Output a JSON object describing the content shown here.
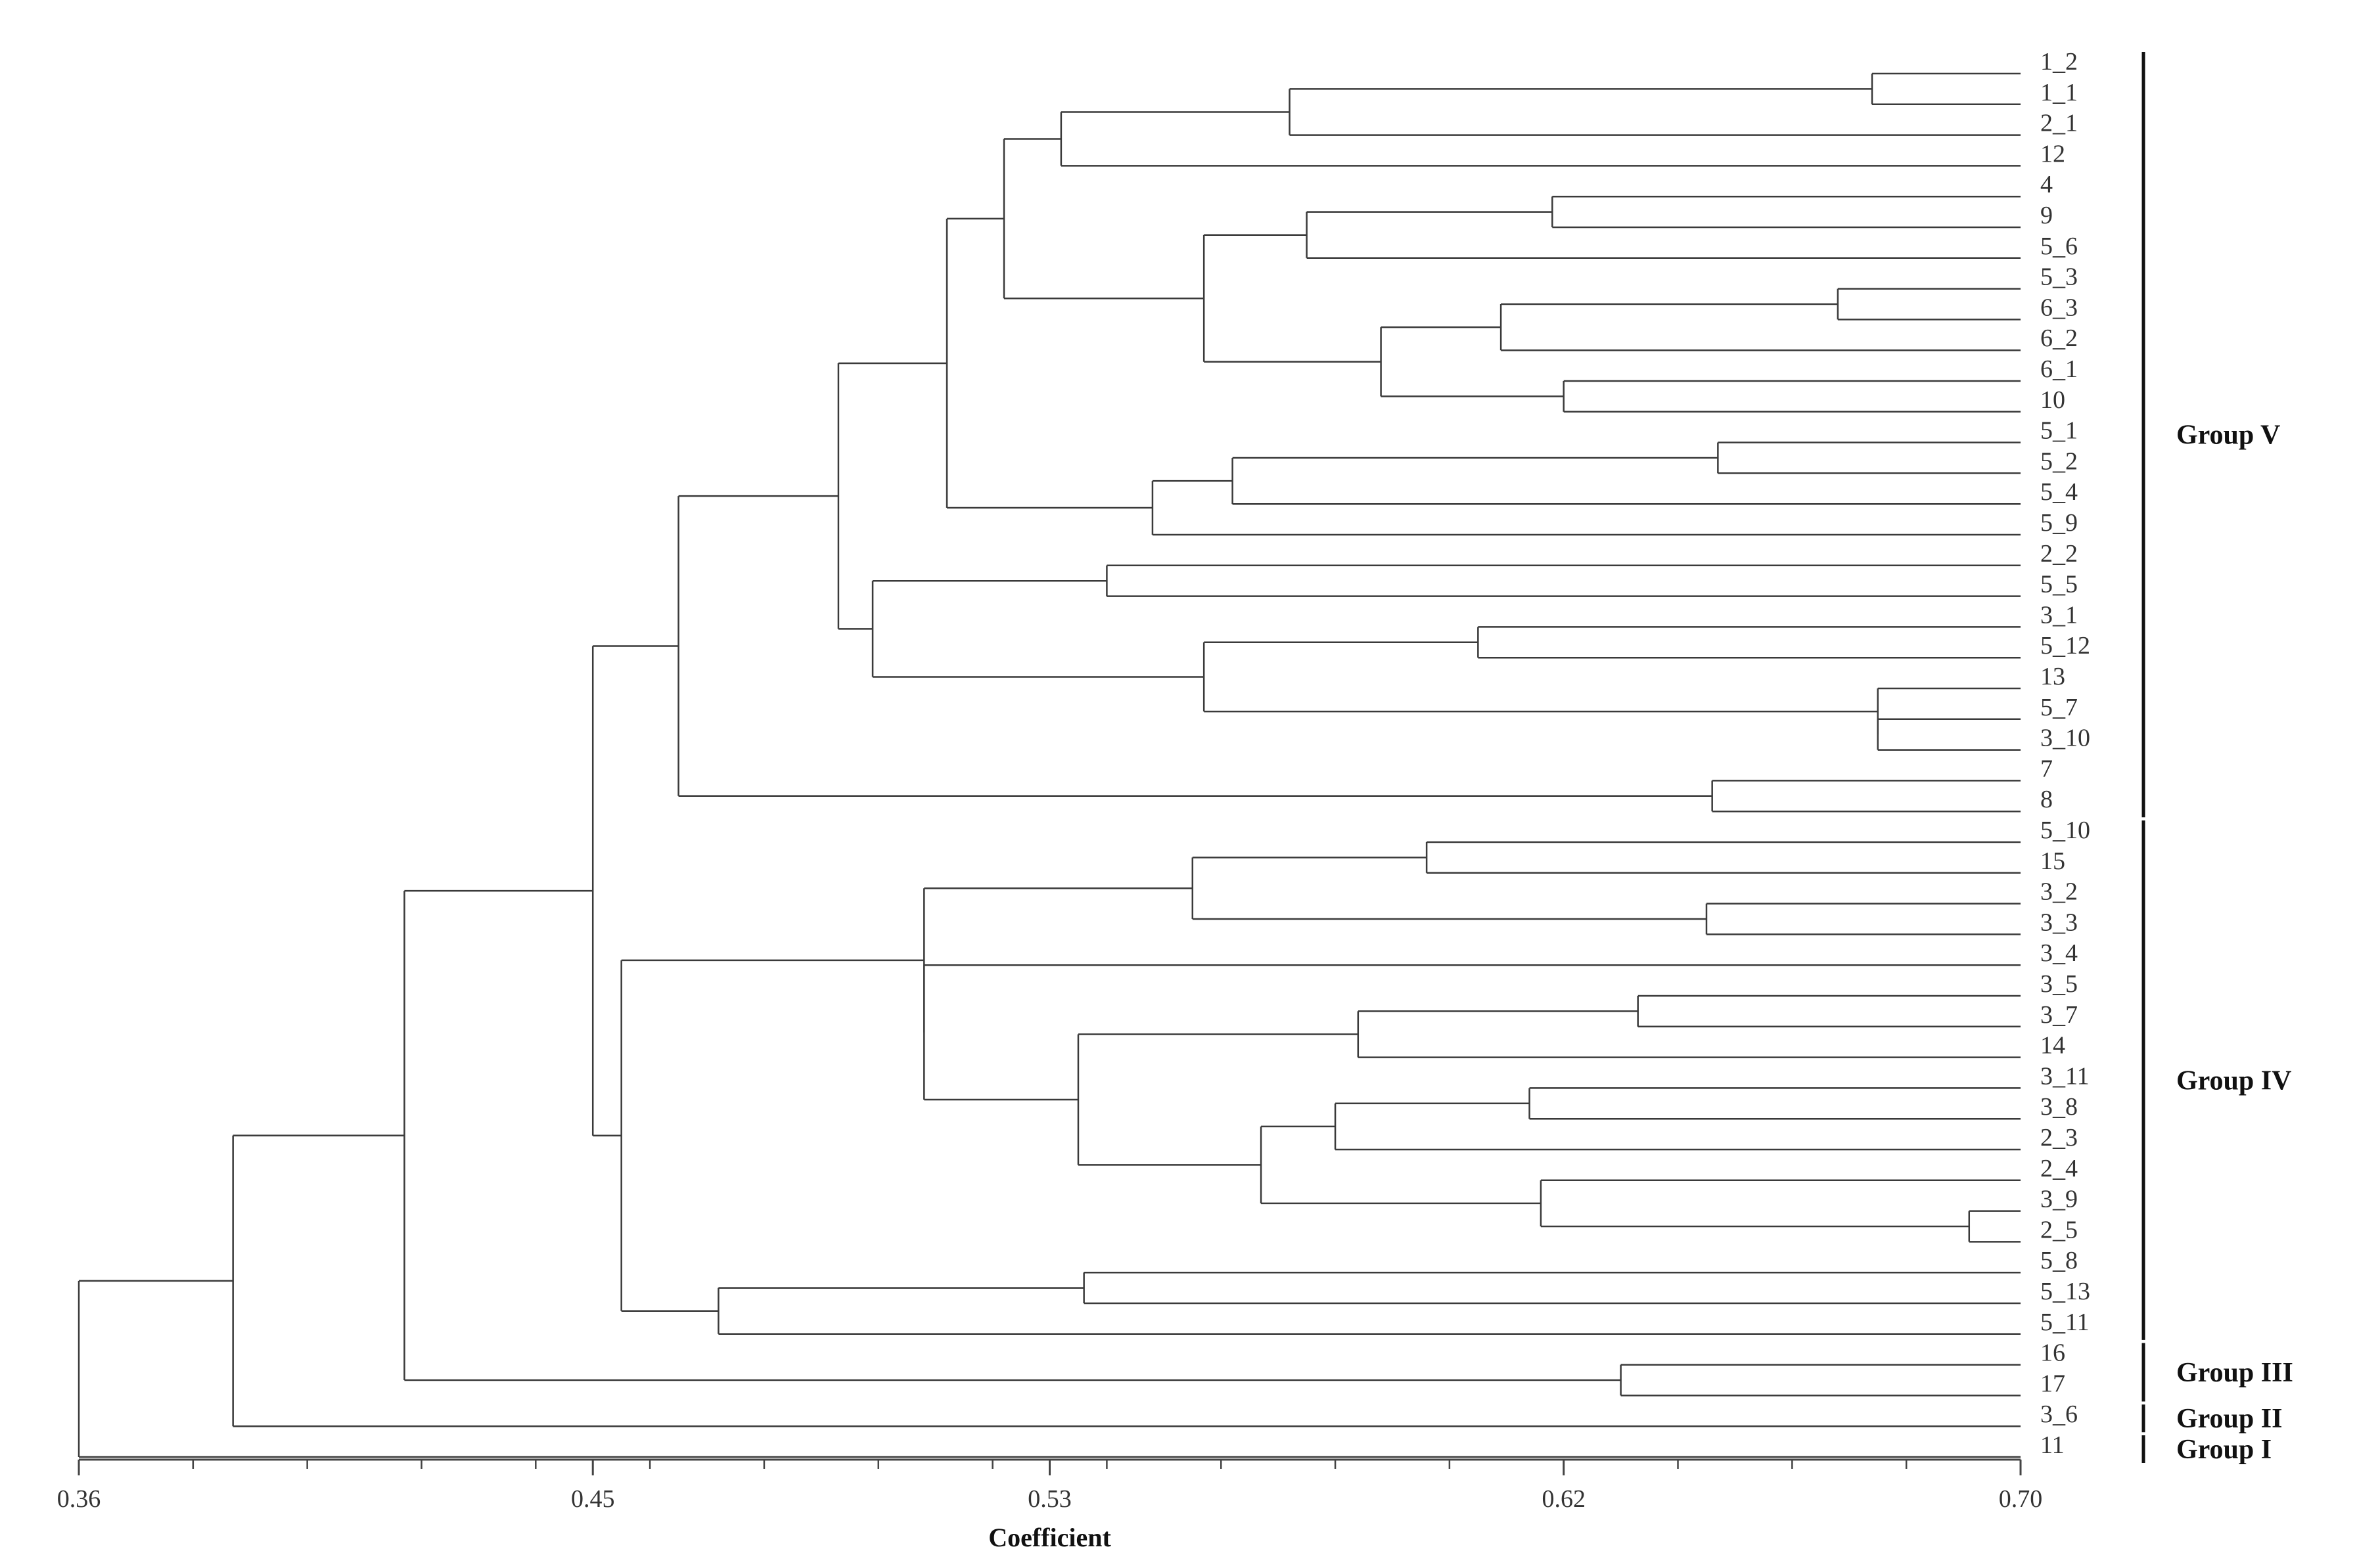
{
  "axis": {
    "title": "Coefficient",
    "min": 0.36,
    "max": 0.7,
    "ticks": [
      "0.36",
      "0.45",
      "0.53",
      "0.62",
      "0.70"
    ],
    "tick_values": [
      0.36,
      0.45,
      0.53,
      0.62,
      0.7
    ]
  },
  "leaves": [
    "1_2",
    "1_1",
    "2_1",
    "12",
    "4",
    "9",
    "5_6",
    "5_3",
    "6_3",
    "6_2",
    "6_1",
    "10",
    "5_1",
    "5_2",
    "5_4",
    "5_9",
    "2_2",
    "5_5",
    "3_1",
    "5_12",
    "13",
    "5_7",
    "3_10",
    "7",
    "8",
    "5_10",
    "15",
    "3_2",
    "3_3",
    "3_4",
    "3_5",
    "3_7",
    "14",
    "3_11",
    "3_8",
    "2_3",
    "2_4",
    "3_9",
    "2_5",
    "5_8",
    "5_13",
    "5_11",
    "16",
    "17",
    "3_6",
    "11"
  ],
  "groups": [
    {
      "label": "Group V",
      "from": 0,
      "to": 24
    },
    {
      "label": "Group IV",
      "from": 25,
      "to": 41
    },
    {
      "label": "Group III",
      "from": 42,
      "to": 43
    },
    {
      "label": "Group II",
      "from": 44,
      "to": 44
    },
    {
      "label": "Group I",
      "from": 45,
      "to": 45
    }
  ],
  "tree": [
    [
      0.36,
      [
        0.387,
        [
          0.417,
          [
            0.45,
            [
              0.465,
              [
                0.493,
                [
                  0.512,
                  [
                    0.522,
                    [
                      0.532,
                      [
                        0.572,
                        [
                          0.674,
                          "1_2",
                          "1_1"
                        ],
                        "2_1"
                      ],
                      "12"
                    ],
                    [
                      0.557,
                      [
                        0.575,
                        [
                          0.618,
                          "4",
                          "9"
                        ],
                        "5_6"
                      ],
                      [
                        0.588,
                        [
                          0.609,
                          [
                            0.668,
                            "5_3",
                            "6_3"
                          ],
                          "6_2"
                        ],
                        [
                          0.62,
                          "6_1",
                          "10"
                        ]
                      ]
                    ]
                  ],
                  [
                    0.548,
                    [
                      0.562,
                      [
                        0.647,
                        "5_1",
                        "5_2"
                      ],
                      "5_4"
                    ],
                    "5_9"
                  ]
                ],
                [
                  0.499,
                  [
                    0.54,
                    "2_2",
                    "5_5"
                  ],
                  [
                    0.557,
                    [
                      0.605,
                      "3_1",
                      "5_12"
                    ],
                    [
                      0.675,
                      "13",
                      [
                        0.675,
                        "5_7",
                        "3_10"
                      ]
                    ]
                  ]
                ]
              ],
              [
                0.646,
                "7",
                "8"
              ]
            ],
            [
              0.455,
              [
                0.508,
                [
                  0.555,
                  [
                    0.596,
                    "5_10",
                    "15"
                  ],
                  [
                    0.645,
                    "3_2",
                    "3_3"
                  ]
                ],
                [
                  0.508,
                  "3_4",
                  [
                    0.535,
                    [
                      0.584,
                      [
                        0.633,
                        "3_5",
                        "3_7"
                      ],
                      "14"
                    ],
                    [
                      0.567,
                      [
                        0.58,
                        [
                          0.614,
                          "3_11",
                          "3_8"
                        ],
                        "2_3"
                      ],
                      [
                        0.616,
                        "2_4",
                        [
                          0.691,
                          "3_9",
                          "2_5"
                        ]
                      ]
                    ]
                  ]
                ]
              ],
              [
                0.472,
                [
                  0.536,
                  "5_8",
                  "5_13"
                ],
                "5_11"
              ]
            ]
          ],
          [
            0.63,
            "16",
            "17"
          ]
        ],
        "3_6"
      ],
      "11"
    ]
  ]
}
